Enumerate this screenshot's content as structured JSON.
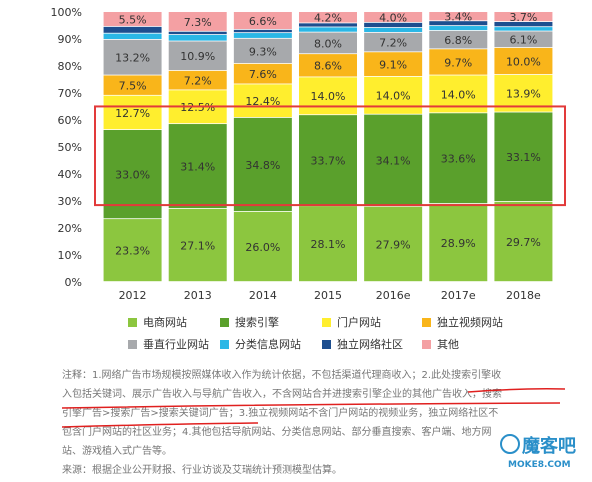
{
  "chart_data": {
    "type": "bar",
    "stacked": true,
    "categories": [
      "2012",
      "2013",
      "2014",
      "2015",
      "2016e",
      "2017e",
      "2018e"
    ],
    "ylim": [
      0,
      100
    ],
    "y_ticks": [
      "0%",
      "10%",
      "20%",
      "30%",
      "40%",
      "50%",
      "60%",
      "70%",
      "80%",
      "90%",
      "100%"
    ],
    "grid": false,
    "legend_placement": "bottom",
    "highlight_series": "搜索引擎",
    "highlight_color": "#e23a3a",
    "series": [
      {
        "name": "电商网站",
        "color": "#8cc63f",
        "values": [
          23.3,
          27.1,
          26.0,
          28.1,
          27.9,
          28.9,
          29.7
        ],
        "labels": [
          "23.3%",
          "27.1%",
          "26.0%",
          "28.1%",
          "27.9%",
          "28.9%",
          "29.7%"
        ]
      },
      {
        "name": "搜索引擎",
        "color": "#5aa02c",
        "values": [
          33.0,
          31.4,
          34.8,
          33.7,
          34.1,
          33.6,
          33.1
        ],
        "labels": [
          "33.0%",
          "31.4%",
          "34.8%",
          "33.7%",
          "34.1%",
          "33.6%",
          "33.1%"
        ]
      },
      {
        "name": "门户网站",
        "color": "#ffee2e",
        "values": [
          12.7,
          12.5,
          12.4,
          14.0,
          14.0,
          14.0,
          13.9
        ],
        "labels": [
          "12.7%",
          "12.5%",
          "12.4%",
          "14.0%",
          "14.0%",
          "14.0%",
          "13.9%"
        ]
      },
      {
        "name": "独立视频网站",
        "color": "#f9b51a",
        "values": [
          7.5,
          7.2,
          7.6,
          8.6,
          9.1,
          9.7,
          10.0
        ],
        "labels": [
          "7.5%",
          "7.2%",
          "7.6%",
          "8.6%",
          "9.1%",
          "9.7%",
          "10.0%"
        ]
      },
      {
        "name": "垂直行业网站",
        "color": "#a7a9ac",
        "values": [
          13.2,
          10.9,
          9.3,
          8.0,
          7.2,
          6.8,
          6.1
        ],
        "labels": [
          "13.2%",
          "10.9%",
          "9.3%",
          "8.0%",
          "7.2%",
          "6.8%",
          "6.1%"
        ]
      },
      {
        "name": "分类信息网站",
        "color": "#2ab7e6",
        "values": [
          2.3,
          2.4,
          2.1,
          1.9,
          1.8,
          1.8,
          1.6
        ],
        "labels": [
          "",
          "",
          "",
          "",
          "",
          "",
          ""
        ]
      },
      {
        "name": "独立网络社区",
        "color": "#1d4e8f",
        "values": [
          2.5,
          1.2,
          1.2,
          1.5,
          1.9,
          1.8,
          1.9
        ],
        "labels": [
          "",
          "",
          "",
          "",
          "",
          "",
          ""
        ]
      },
      {
        "name": "其他",
        "color": "#f4a0a3",
        "values": [
          5.5,
          7.3,
          6.6,
          4.2,
          4.0,
          3.4,
          3.7
        ],
        "labels": [
          "5.5%",
          "7.3%",
          "6.6%",
          "4.2%",
          "4.0%",
          "3.4%",
          "3.7%"
        ]
      }
    ]
  },
  "legend": {
    "items": [
      "电商网站",
      "搜索引擎",
      "门户网站",
      "独立视频网站",
      "垂直行业网站",
      "分类信息网站",
      "独立网络社区",
      "其他"
    ]
  },
  "notes": {
    "line1": "注释：1.网络广告市场规模按照媒体收入作为统计依据，不包括渠道代理商收入；2.此处搜索引擎收",
    "line2": "入包括关键词、展示广告收入与导航广告收入，不含网站合并进搜索引擎企业的其他广告收入，搜索",
    "line3": "引擎广告>搜索广告>搜索关键词广告；3.独立视频网站不含门户网站的视频业务，独立网络社区不",
    "line4": "包含门户网站的社区业务；4.其他包括导航网站、分类信息网站、部分垂直搜索、客户端、地方网",
    "line5": "站、游戏植入式广告等。",
    "source": "来源：根据企业公开财报、行业访谈及艾瑞统计预测模型估算。"
  },
  "watermark": {
    "title": "魔客吧",
    "url": "MOKE8.COM"
  }
}
